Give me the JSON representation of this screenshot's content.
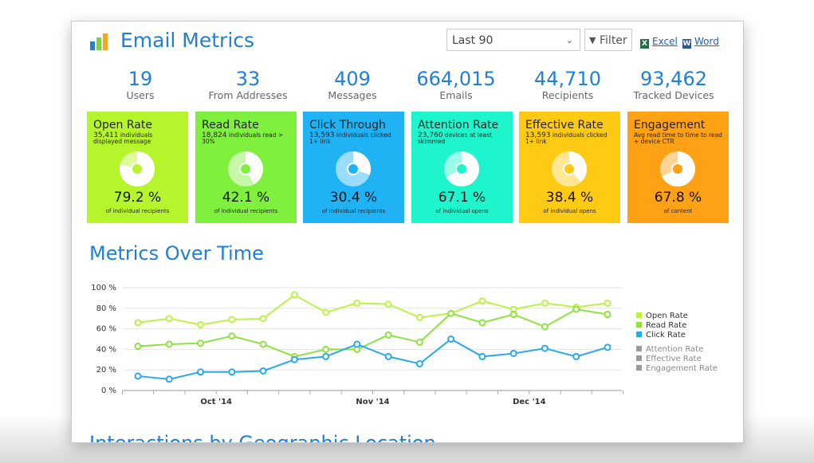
{
  "header": {
    "title": "Email Metrics",
    "period": "Last 90",
    "filter": "Filter",
    "exports": [
      "Excel",
      "Word"
    ]
  },
  "stats": [
    {
      "value": "19",
      "label": "Users"
    },
    {
      "value": "33",
      "label": "From Addresses"
    },
    {
      "value": "409",
      "label": "Messages"
    },
    {
      "value": "664,015",
      "label": "Emails"
    },
    {
      "value": "44,710",
      "label": "Recipients"
    },
    {
      "value": "93,462",
      "label": "Tracked Devices"
    }
  ],
  "cards": [
    {
      "title": "Open Rate",
      "count": "35,411",
      "description": "individuals displayed message",
      "value": 79.2,
      "value_label": "79.2 %",
      "note": "of individual recipients",
      "color": "#b6f52c"
    },
    {
      "title": "Read Rate",
      "count": "18,824",
      "description": "individuals read > 30%",
      "value": 42.1,
      "value_label": "42.1 %",
      "note": "of individual recipients",
      "color": "#80f03f"
    },
    {
      "title": "Click Through",
      "count": "13,593",
      "description": "individuals clicked 1+ link",
      "value": 30.4,
      "value_label": "30.4 %",
      "note": "of individual recipients",
      "color": "#1fb2f5"
    },
    {
      "title": "Attention Rate",
      "count": "23,760",
      "description": "devices at least skimmed",
      "value": 67.1,
      "value_label": "67.1 %",
      "note": "of individual opens",
      "color": "#1ff5cc"
    },
    {
      "title": "Effective Rate",
      "count": "13,593",
      "description": "individuals clicked 1+ link",
      "value": 38.4,
      "value_label": "38.4 %",
      "note": "of individual opens",
      "color": "#ffca14"
    },
    {
      "title": "Engagement",
      "count": null,
      "description": "Avg read time to time to read + device CTR",
      "value": 67.8,
      "value_label": "67.8 %",
      "note": "of content",
      "color": "#ffa114"
    }
  ],
  "section_titles": [
    "Metrics Over Time",
    "Interactions by Geographic Location"
  ],
  "chart_data": {
    "type": "line",
    "categories": [
      null,
      null,
      "Oct '14",
      null,
      null,
      null,
      null,
      "Nov '14",
      null,
      null,
      null,
      null,
      "Dec '14",
      null,
      null,
      null
    ],
    "ylim": [
      0,
      100
    ],
    "yticks": [
      {
        "value": 0,
        "label": "0 %"
      },
      {
        "value": 20,
        "label": "20 %"
      },
      {
        "value": 40,
        "label": "40 %"
      },
      {
        "value": 60,
        "label": "60 %"
      },
      {
        "value": 80,
        "label": "80 %"
      },
      {
        "value": 100,
        "label": "100 %"
      }
    ],
    "grid": true,
    "legend": "right",
    "series": [
      {
        "name": "Open Rate",
        "color": "#bdf246",
        "values": [
          66,
          70,
          64,
          69,
          70,
          93,
          76,
          85,
          84,
          71,
          75,
          87,
          79,
          85,
          81,
          85
        ]
      },
      {
        "name": "Read Rate",
        "color": "#8fe23f",
        "values": [
          43,
          45,
          46,
          53,
          45,
          33,
          40,
          40,
          54,
          47,
          75,
          66,
          74,
          62,
          79,
          74
        ]
      },
      {
        "name": "Click Rate",
        "color": "#2aa9e8",
        "values": [
          14,
          11,
          18,
          18,
          19,
          30,
          33,
          45,
          33,
          26,
          50,
          33,
          36,
          41,
          33,
          42
        ]
      }
    ],
    "inactive_series": [
      {
        "name": "Attention Rate",
        "color": "#9a9a9a"
      },
      {
        "name": "Effective Rate",
        "color": "#9a9a9a"
      },
      {
        "name": "Engagement Rate",
        "color": "#9a9a9a"
      }
    ]
  }
}
